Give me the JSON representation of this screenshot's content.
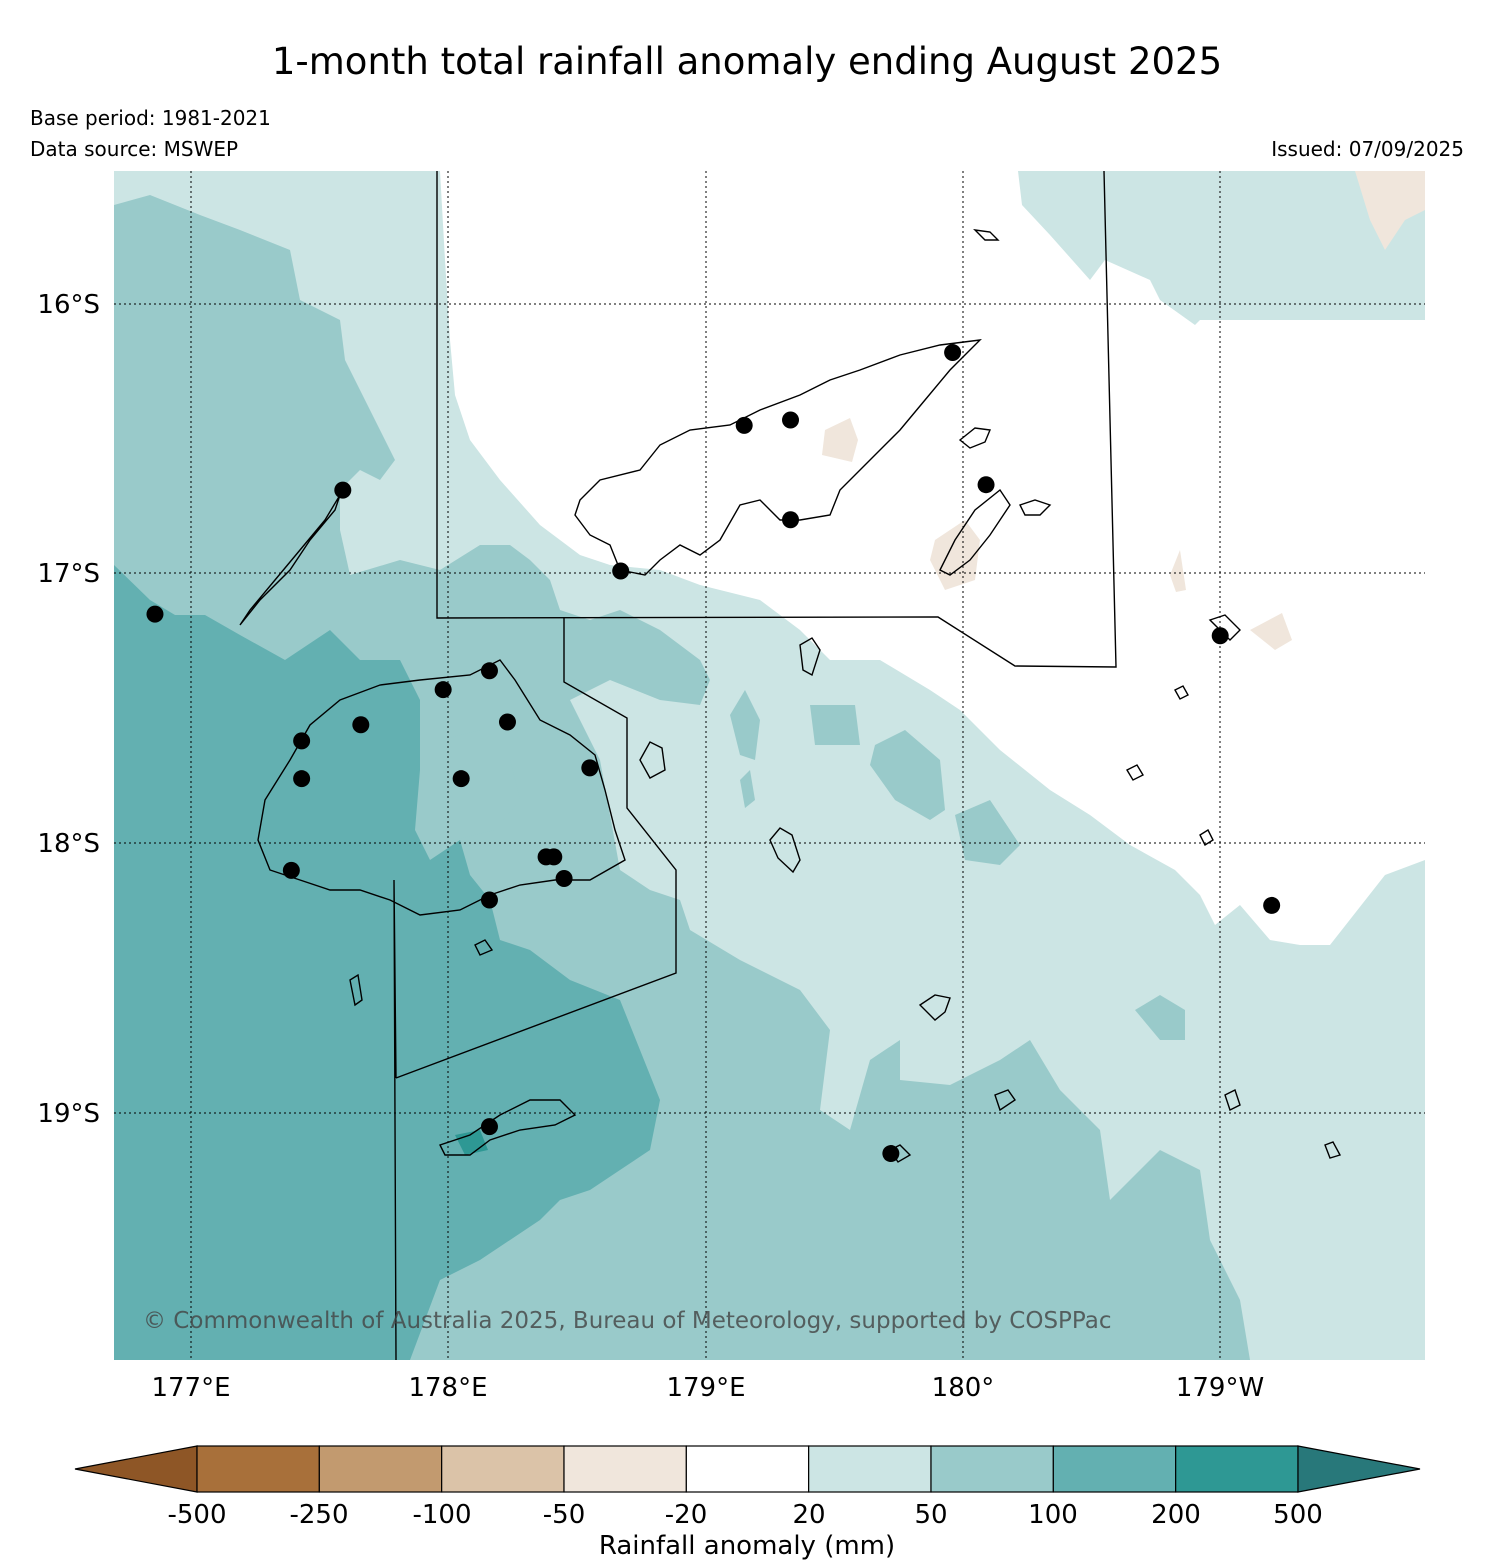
{
  "title": "1-month total rainfall anomaly ending August 2025",
  "base_period": "Base period: 1981-2021",
  "data_source": "Data source: MSWEP",
  "issued": "Issued: 07/09/2025",
  "copyright": "© Commonwealth of Australia 2025, Bureau of Meteorology, supported by COSPPac",
  "latitude_labels": [
    "16°S",
    "17°S",
    "18°S",
    "19°S"
  ],
  "longitude_labels": [
    "177°E",
    "178°E",
    "179°E",
    "180°",
    "179°W"
  ],
  "colorbar": {
    "title": "Rainfall anomaly (mm)",
    "tick_labels": [
      "-500",
      "-250",
      "-100",
      "-50",
      "-20",
      "20",
      "50",
      "100",
      "200",
      "500"
    ],
    "bins": [
      {
        "range": "< -500",
        "color": "#8e5626"
      },
      {
        "range": "-500 to -250",
        "color": "#a8703a"
      },
      {
        "range": "-250 to -100",
        "color": "#c29a6f"
      },
      {
        "range": "-100 to -50",
        "color": "#dbc3a8"
      },
      {
        "range": "-50 to -20",
        "color": "#f0e6dc"
      },
      {
        "range": "-20 to 20",
        "color": "#ffffff"
      },
      {
        "range": "20 to 50",
        "color": "#cce5e4"
      },
      {
        "range": "50 to 100",
        "color": "#99caca"
      },
      {
        "range": "100 to 200",
        "color": "#63b0b1"
      },
      {
        "range": "200 to 500",
        "color": "#2e9894"
      },
      {
        "range": "> 500",
        "color": "#28787a"
      }
    ]
  },
  "stations": [
    [
      177.59,
      -16.69
    ],
    [
      176.86,
      -17.15
    ],
    [
      177.43,
      -17.62
    ],
    [
      177.66,
      -17.56
    ],
    [
      177.43,
      -17.76
    ],
    [
      177.39,
      -18.1
    ],
    [
      177.98,
      -17.43
    ],
    [
      178.16,
      -17.36
    ],
    [
      178.23,
      -17.55
    ],
    [
      178.05,
      -17.76
    ],
    [
      178.55,
      -17.72
    ],
    [
      178.38,
      -18.05
    ],
    [
      178.41,
      -18.05
    ],
    [
      178.45,
      -18.13
    ],
    [
      178.16,
      -18.21
    ],
    [
      178.67,
      -16.99
    ],
    [
      179.15,
      -16.45
    ],
    [
      179.33,
      -16.43
    ],
    [
      179.33,
      -16.8
    ],
    [
      179.96,
      -16.18
    ],
    [
      180.09,
      -16.67
    ],
    [
      181.0,
      -17.23
    ],
    [
      181.2,
      -18.23
    ],
    [
      178.16,
      -19.05
    ],
    [
      179.72,
      -19.15
    ]
  ]
}
